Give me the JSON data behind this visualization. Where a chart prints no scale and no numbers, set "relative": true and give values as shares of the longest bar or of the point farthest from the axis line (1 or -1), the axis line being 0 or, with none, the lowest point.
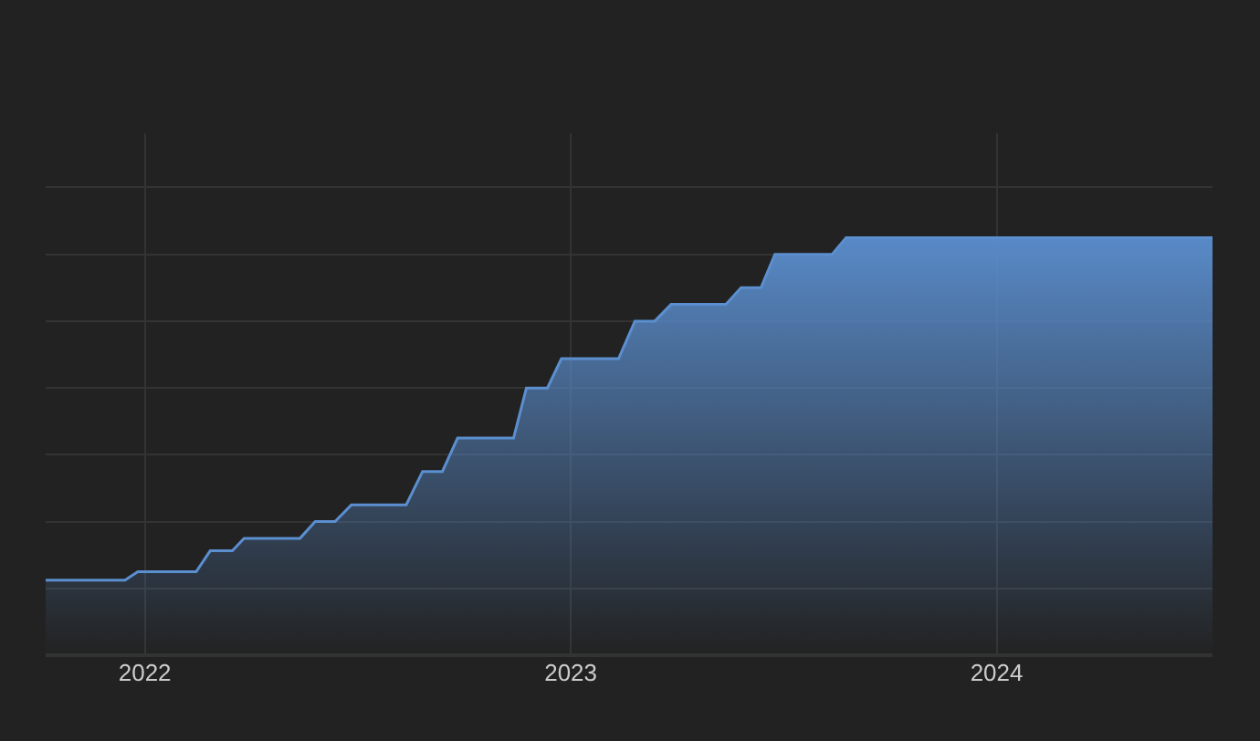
{
  "chart_data": {
    "type": "area",
    "relative": true,
    "color": "#5b8fd0",
    "grid": true,
    "xlim": [
      "2021-10-08",
      "2024-07-04"
    ],
    "xticks": [
      {
        "value": "2022-01-01",
        "label": "2022"
      },
      {
        "value": "2023-01-01",
        "label": "2023"
      },
      {
        "value": "2024-01-01",
        "label": "2024"
      }
    ],
    "x": [
      "2021-10-08",
      "2021-12-15",
      "2021-12-26",
      "2022-02-14",
      "2022-02-26",
      "2022-03-17",
      "2022-03-27",
      "2022-05-14",
      "2022-05-27",
      "2022-06-13",
      "2022-06-27",
      "2022-08-13",
      "2022-08-27",
      "2022-09-13",
      "2022-09-26",
      "2022-11-13",
      "2022-11-24",
      "2022-12-12",
      "2022-12-24",
      "2023-02-11",
      "2023-02-25",
      "2023-03-14",
      "2023-03-28",
      "2023-05-14",
      "2023-05-27",
      "2023-06-13",
      "2023-06-25",
      "2023-08-13",
      "2023-08-25",
      "2024-07-04"
    ],
    "values": [
      0.18,
      0.18,
      0.2,
      0.2,
      0.25,
      0.25,
      0.28,
      0.28,
      0.32,
      0.32,
      0.36,
      0.36,
      0.44,
      0.44,
      0.52,
      0.52,
      0.64,
      0.64,
      0.71,
      0.71,
      0.8,
      0.8,
      0.84,
      0.84,
      0.88,
      0.88,
      0.96,
      0.96,
      1,
      1
    ]
  }
}
